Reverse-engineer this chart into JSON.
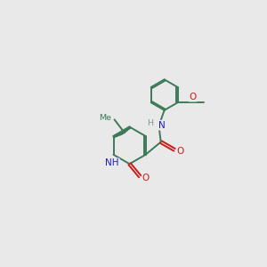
{
  "bg_color": "#e9e9e9",
  "bond_color": "#3d7a5a",
  "N_color": "#1a1acc",
  "O_color": "#cc1a1a",
  "H_color": "#7a9a8a",
  "line_width": 1.4,
  "figsize": [
    3.0,
    3.0
  ],
  "dpi": 100,
  "xlim": [
    0,
    10
  ],
  "ylim": [
    0,
    10
  ]
}
